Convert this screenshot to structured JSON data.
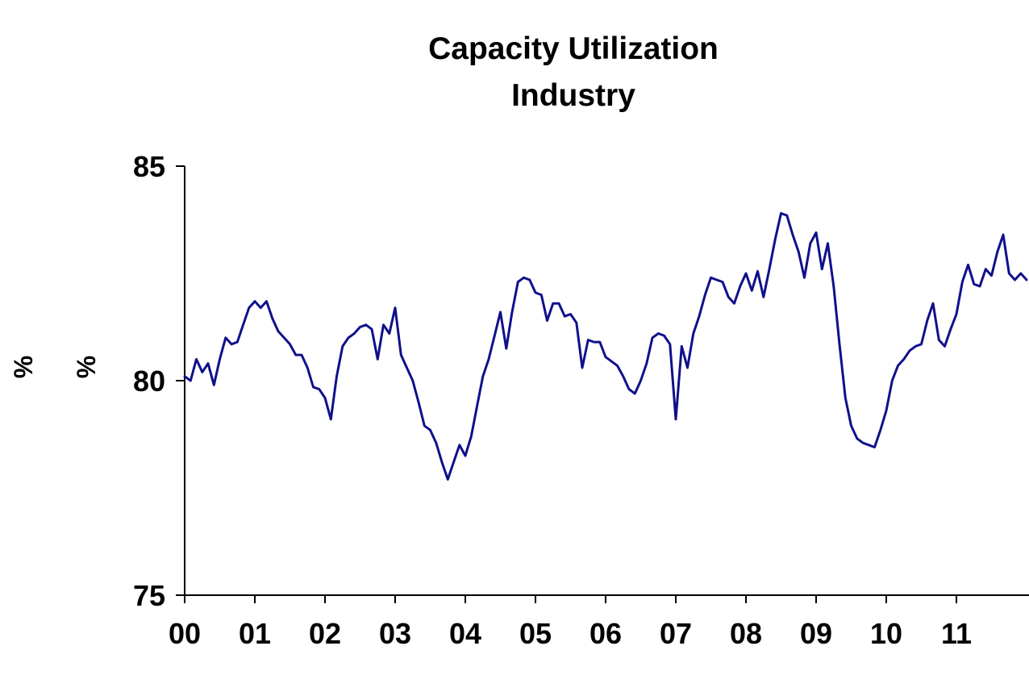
{
  "title": {
    "line1": "Capacity Utilization",
    "line2": "Industry"
  },
  "y_axis": {
    "label": "%",
    "label2": "%"
  },
  "chart_data": {
    "type": "line",
    "title": "Capacity Utilization Industry",
    "xlabel": "",
    "ylabel": "%",
    "ylim": [
      75,
      85
    ],
    "y_ticks": [
      85,
      80,
      75
    ],
    "y_tick_labels": [
      "85",
      "80",
      "75"
    ],
    "x_tick_labels": [
      "00",
      "01",
      "02",
      "03",
      "04",
      "05",
      "06",
      "07",
      "08",
      "09",
      "10",
      "11"
    ],
    "x_start_year": 2000,
    "points_per_year": 12,
    "grid": false,
    "legend_position": "none",
    "axis_color": "#000000",
    "series": [
      {
        "name": "Capacity Utilization, Industry",
        "color": "#10108c",
        "values": [
          80.1,
          80.0,
          80.5,
          80.2,
          80.4,
          79.9,
          80.5,
          81.0,
          80.85,
          80.9,
          81.3,
          81.7,
          81.85,
          81.7,
          81.85,
          81.45,
          81.15,
          81.0,
          80.85,
          80.6,
          80.6,
          80.3,
          79.85,
          79.8,
          79.6,
          79.1,
          80.1,
          80.8,
          81.0,
          81.1,
          81.25,
          81.3,
          81.2,
          80.5,
          81.3,
          81.1,
          81.7,
          80.6,
          80.3,
          80.0,
          79.5,
          78.95,
          78.85,
          78.55,
          78.1,
          77.7,
          78.1,
          78.5,
          78.25,
          78.7,
          79.4,
          80.1,
          80.5,
          81.05,
          81.6,
          80.75,
          81.6,
          82.3,
          82.4,
          82.35,
          82.05,
          82.0,
          81.4,
          81.8,
          81.8,
          81.5,
          81.55,
          81.35,
          80.3,
          80.95,
          80.9,
          80.9,
          80.55,
          80.45,
          80.35,
          80.1,
          79.8,
          79.7,
          80.0,
          80.4,
          81.0,
          81.1,
          81.05,
          80.85,
          79.1,
          80.8,
          80.3,
          81.1,
          81.5,
          82.0,
          82.4,
          82.35,
          82.3,
          81.95,
          81.8,
          82.2,
          82.5,
          82.1,
          82.55,
          81.95,
          82.6,
          83.3,
          83.9,
          83.85,
          83.4,
          83.0,
          82.4,
          83.2,
          83.45,
          82.6,
          83.2,
          82.2,
          80.85,
          79.6,
          78.95,
          78.65,
          78.55,
          78.5,
          78.45,
          78.85,
          79.3,
          80.0,
          80.35,
          80.5,
          80.7,
          80.8,
          80.85,
          81.4,
          81.8,
          80.95,
          80.8,
          81.2,
          81.55,
          82.3,
          82.7,
          82.25,
          82.2,
          82.6,
          82.45,
          83.0,
          83.4,
          82.5,
          82.35,
          82.5,
          82.35
        ]
      }
    ]
  }
}
